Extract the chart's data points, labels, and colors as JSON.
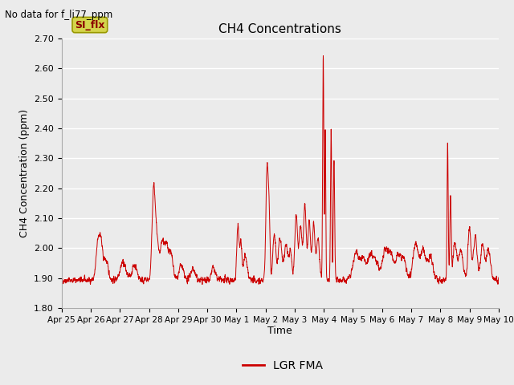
{
  "title": "CH4 Concentrations",
  "top_left_text": "No data for f_li77_ppm",
  "ylabel": "CH4 Concentration (ppm)",
  "xlabel": "Time",
  "ylim": [
    1.8,
    2.7
  ],
  "yticks": [
    1.8,
    1.9,
    2.0,
    2.1,
    2.2,
    2.3,
    2.4,
    2.5,
    2.6,
    2.7
  ],
  "bg_color": "#ebebeb",
  "plot_bg_color": "#ebebeb",
  "line_color": "#cc0000",
  "legend_label": "LGR FMA",
  "legend_line_color": "#cc0000",
  "si_flx_text": "SI_flx",
  "x_tick_labels": [
    "Apr 25",
    "Apr 26",
    "Apr 27",
    "Apr 28",
    "Apr 29",
    "Apr 30",
    "May 1",
    "May 2",
    "May 3",
    "May 4",
    "May 5",
    "May 6",
    "May 7",
    "May 8",
    "May 9",
    "May 10"
  ],
  "n_points": 4000,
  "grid_color": "#ffffff",
  "spine_color": "#aaaaaa"
}
